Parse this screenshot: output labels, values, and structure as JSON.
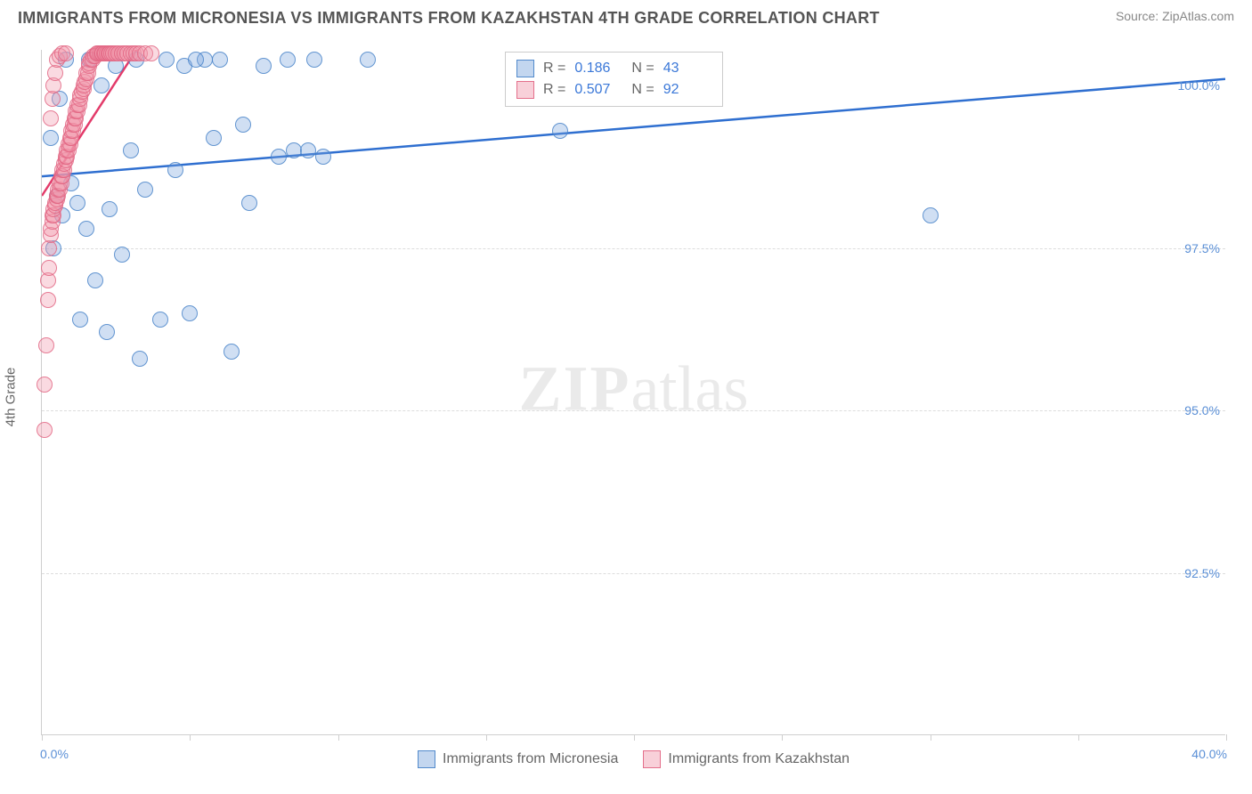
{
  "title": "IMMIGRANTS FROM MICRONESIA VS IMMIGRANTS FROM KAZAKHSTAN 4TH GRADE CORRELATION CHART",
  "source": "Source: ZipAtlas.com",
  "watermark_zip": "ZIP",
  "watermark_atlas": "atlas",
  "y_axis_title": "4th Grade",
  "chart": {
    "type": "scatter",
    "xlim": [
      0.0,
      40.0
    ],
    "ylim": [
      90.0,
      100.55
    ],
    "y_gridlines": [
      92.5,
      95.0,
      97.5
    ],
    "y_tick_labels": [
      "92.5%",
      "95.0%",
      "97.5%",
      "100.0%"
    ],
    "y_tick_values": [
      92.5,
      95.0,
      97.5,
      100.0
    ],
    "x_tick_values": [
      0,
      5,
      10,
      15,
      20,
      25,
      30,
      35,
      40
    ],
    "x_tick_labels_left": "0.0%",
    "x_tick_labels_right": "40.0%",
    "background_color": "#ffffff",
    "grid_color": "#dcdcdc",
    "axis_color": "#cfcfcf",
    "series": [
      {
        "name": "Immigrants from Micronesia",
        "color_fill": "rgba(121,163,220,0.35)",
        "color_stroke": "#4682c8",
        "marker_radius": 9,
        "trend_color": "#2f6fd0",
        "trend_width": 2.5,
        "trend_line": {
          "x1": 0.0,
          "y1": 98.6,
          "x2": 40.0,
          "y2": 100.1
        },
        "points": [
          [
            0.3,
            99.2
          ],
          [
            0.4,
            97.5
          ],
          [
            0.5,
            98.3
          ],
          [
            0.6,
            99.8
          ],
          [
            0.7,
            98.0
          ],
          [
            0.8,
            100.4
          ],
          [
            1.0,
            98.5
          ],
          [
            1.2,
            98.2
          ],
          [
            1.3,
            96.4
          ],
          [
            1.5,
            97.8
          ],
          [
            1.6,
            100.4
          ],
          [
            1.8,
            97.0
          ],
          [
            2.0,
            100.0
          ],
          [
            2.2,
            96.2
          ],
          [
            2.3,
            98.1
          ],
          [
            2.5,
            100.3
          ],
          [
            2.7,
            97.4
          ],
          [
            3.0,
            99.0
          ],
          [
            3.2,
            100.4
          ],
          [
            3.3,
            95.8
          ],
          [
            3.5,
            98.4
          ],
          [
            4.0,
            96.4
          ],
          [
            4.2,
            100.4
          ],
          [
            4.5,
            98.7
          ],
          [
            4.8,
            100.3
          ],
          [
            5.0,
            96.5
          ],
          [
            5.5,
            100.4
          ],
          [
            5.8,
            99.2
          ],
          [
            6.0,
            100.4
          ],
          [
            6.4,
            95.9
          ],
          [
            6.8,
            99.4
          ],
          [
            7.0,
            98.2
          ],
          [
            7.5,
            100.3
          ],
          [
            8.0,
            98.9
          ],
          [
            8.3,
            100.4
          ],
          [
            8.5,
            99.0
          ],
          [
            9.0,
            99.0
          ],
          [
            9.2,
            100.4
          ],
          [
            9.5,
            98.9
          ],
          [
            11.0,
            100.4
          ],
          [
            17.5,
            99.3
          ],
          [
            30.0,
            98.0
          ],
          [
            5.2,
            100.4
          ]
        ]
      },
      {
        "name": "Immigrants from Kazakhstan",
        "color_fill": "rgba(240,150,170,0.35)",
        "color_stroke": "#e16482",
        "marker_radius": 9,
        "trend_color": "#e33b6a",
        "trend_width": 2.5,
        "trend_line": {
          "x1": 0.0,
          "y1": 98.3,
          "x2": 3.2,
          "y2": 100.55
        },
        "points": [
          [
            0.1,
            94.7
          ],
          [
            0.1,
            95.4
          ],
          [
            0.15,
            96.0
          ],
          [
            0.2,
            96.7
          ],
          [
            0.2,
            97.0
          ],
          [
            0.25,
            97.2
          ],
          [
            0.25,
            97.5
          ],
          [
            0.3,
            97.7
          ],
          [
            0.3,
            97.8
          ],
          [
            0.35,
            97.9
          ],
          [
            0.35,
            98.0
          ],
          [
            0.4,
            98.0
          ],
          [
            0.4,
            98.1
          ],
          [
            0.45,
            98.15
          ],
          [
            0.45,
            98.2
          ],
          [
            0.5,
            98.25
          ],
          [
            0.5,
            98.3
          ],
          [
            0.55,
            98.3
          ],
          [
            0.55,
            98.4
          ],
          [
            0.6,
            98.4
          ],
          [
            0.6,
            98.5
          ],
          [
            0.65,
            98.5
          ],
          [
            0.65,
            98.6
          ],
          [
            0.7,
            98.6
          ],
          [
            0.7,
            98.7
          ],
          [
            0.75,
            98.7
          ],
          [
            0.75,
            98.8
          ],
          [
            0.8,
            98.85
          ],
          [
            0.8,
            98.9
          ],
          [
            0.85,
            98.9
          ],
          [
            0.85,
            99.0
          ],
          [
            0.9,
            99.0
          ],
          [
            0.9,
            99.1
          ],
          [
            0.95,
            99.1
          ],
          [
            0.95,
            99.2
          ],
          [
            1.0,
            99.2
          ],
          [
            1.0,
            99.3
          ],
          [
            1.05,
            99.3
          ],
          [
            1.05,
            99.4
          ],
          [
            1.1,
            99.4
          ],
          [
            1.1,
            99.5
          ],
          [
            1.15,
            99.5
          ],
          [
            1.15,
            99.6
          ],
          [
            1.2,
            99.6
          ],
          [
            1.2,
            99.7
          ],
          [
            1.25,
            99.7
          ],
          [
            1.3,
            99.8
          ],
          [
            1.3,
            99.85
          ],
          [
            1.35,
            99.9
          ],
          [
            1.4,
            99.95
          ],
          [
            1.4,
            100.0
          ],
          [
            1.45,
            100.05
          ],
          [
            1.5,
            100.1
          ],
          [
            1.5,
            100.2
          ],
          [
            1.55,
            100.2
          ],
          [
            1.6,
            100.3
          ],
          [
            1.6,
            100.35
          ],
          [
            1.65,
            100.4
          ],
          [
            1.7,
            100.4
          ],
          [
            1.75,
            100.45
          ],
          [
            1.8,
            100.45
          ],
          [
            1.85,
            100.5
          ],
          [
            1.9,
            100.5
          ],
          [
            1.95,
            100.5
          ],
          [
            2.0,
            100.5
          ],
          [
            2.05,
            100.5
          ],
          [
            2.1,
            100.5
          ],
          [
            2.15,
            100.5
          ],
          [
            2.2,
            100.5
          ],
          [
            2.25,
            100.5
          ],
          [
            2.3,
            100.5
          ],
          [
            2.35,
            100.5
          ],
          [
            2.4,
            100.5
          ],
          [
            2.5,
            100.5
          ],
          [
            2.6,
            100.5
          ],
          [
            2.7,
            100.5
          ],
          [
            2.8,
            100.5
          ],
          [
            2.9,
            100.5
          ],
          [
            3.0,
            100.5
          ],
          [
            3.1,
            100.5
          ],
          [
            3.2,
            100.5
          ],
          [
            3.3,
            100.5
          ],
          [
            3.5,
            100.5
          ],
          [
            3.7,
            100.5
          ],
          [
            0.3,
            99.5
          ],
          [
            0.35,
            99.8
          ],
          [
            0.4,
            100.0
          ],
          [
            0.45,
            100.2
          ],
          [
            0.5,
            100.4
          ],
          [
            0.6,
            100.45
          ],
          [
            0.7,
            100.5
          ],
          [
            0.8,
            100.5
          ]
        ]
      }
    ],
    "legend_rn": {
      "rows": [
        {
          "swatch": "blue",
          "r_value": "0.186",
          "n_value": "43"
        },
        {
          "swatch": "pink",
          "r_value": "0.507",
          "n_value": "92"
        }
      ],
      "r_label": "R  =",
      "n_label": "N  ="
    },
    "bottom_legend": [
      {
        "swatch": "blue",
        "label": "Immigrants from Micronesia"
      },
      {
        "swatch": "pink",
        "label": "Immigrants from Kazakhstan"
      }
    ]
  }
}
